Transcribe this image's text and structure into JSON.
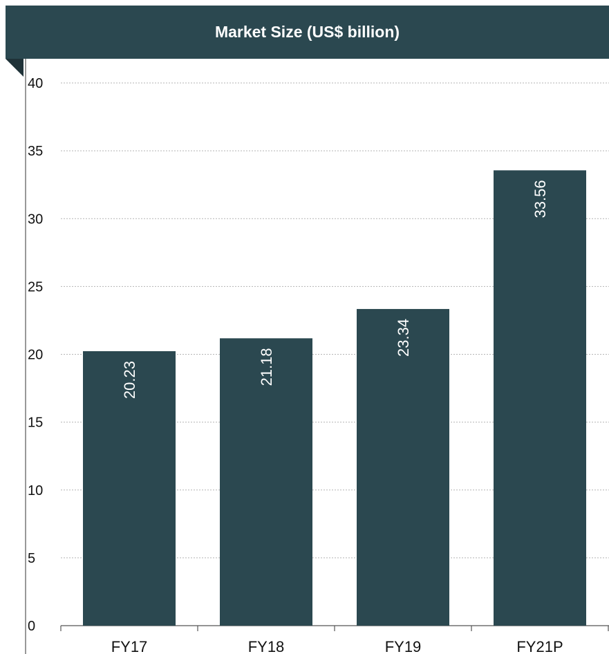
{
  "chart_data": {
    "type": "bar",
    "title": "Market Size (US$ billion)",
    "categories": [
      "FY17",
      "FY18",
      "FY19",
      "FY21P"
    ],
    "values": [
      20.23,
      21.18,
      23.34,
      33.56
    ],
    "value_labels": [
      "20.23",
      "21.18",
      "23.34",
      "33.56"
    ],
    "y_ticks": [
      "0",
      "5",
      "10",
      "15",
      "20",
      "25",
      "30",
      "35",
      "40"
    ],
    "ylim": [
      0,
      40
    ],
    "grid": true,
    "bar_color": "#2b4850",
    "header_color": "#2b4850"
  }
}
